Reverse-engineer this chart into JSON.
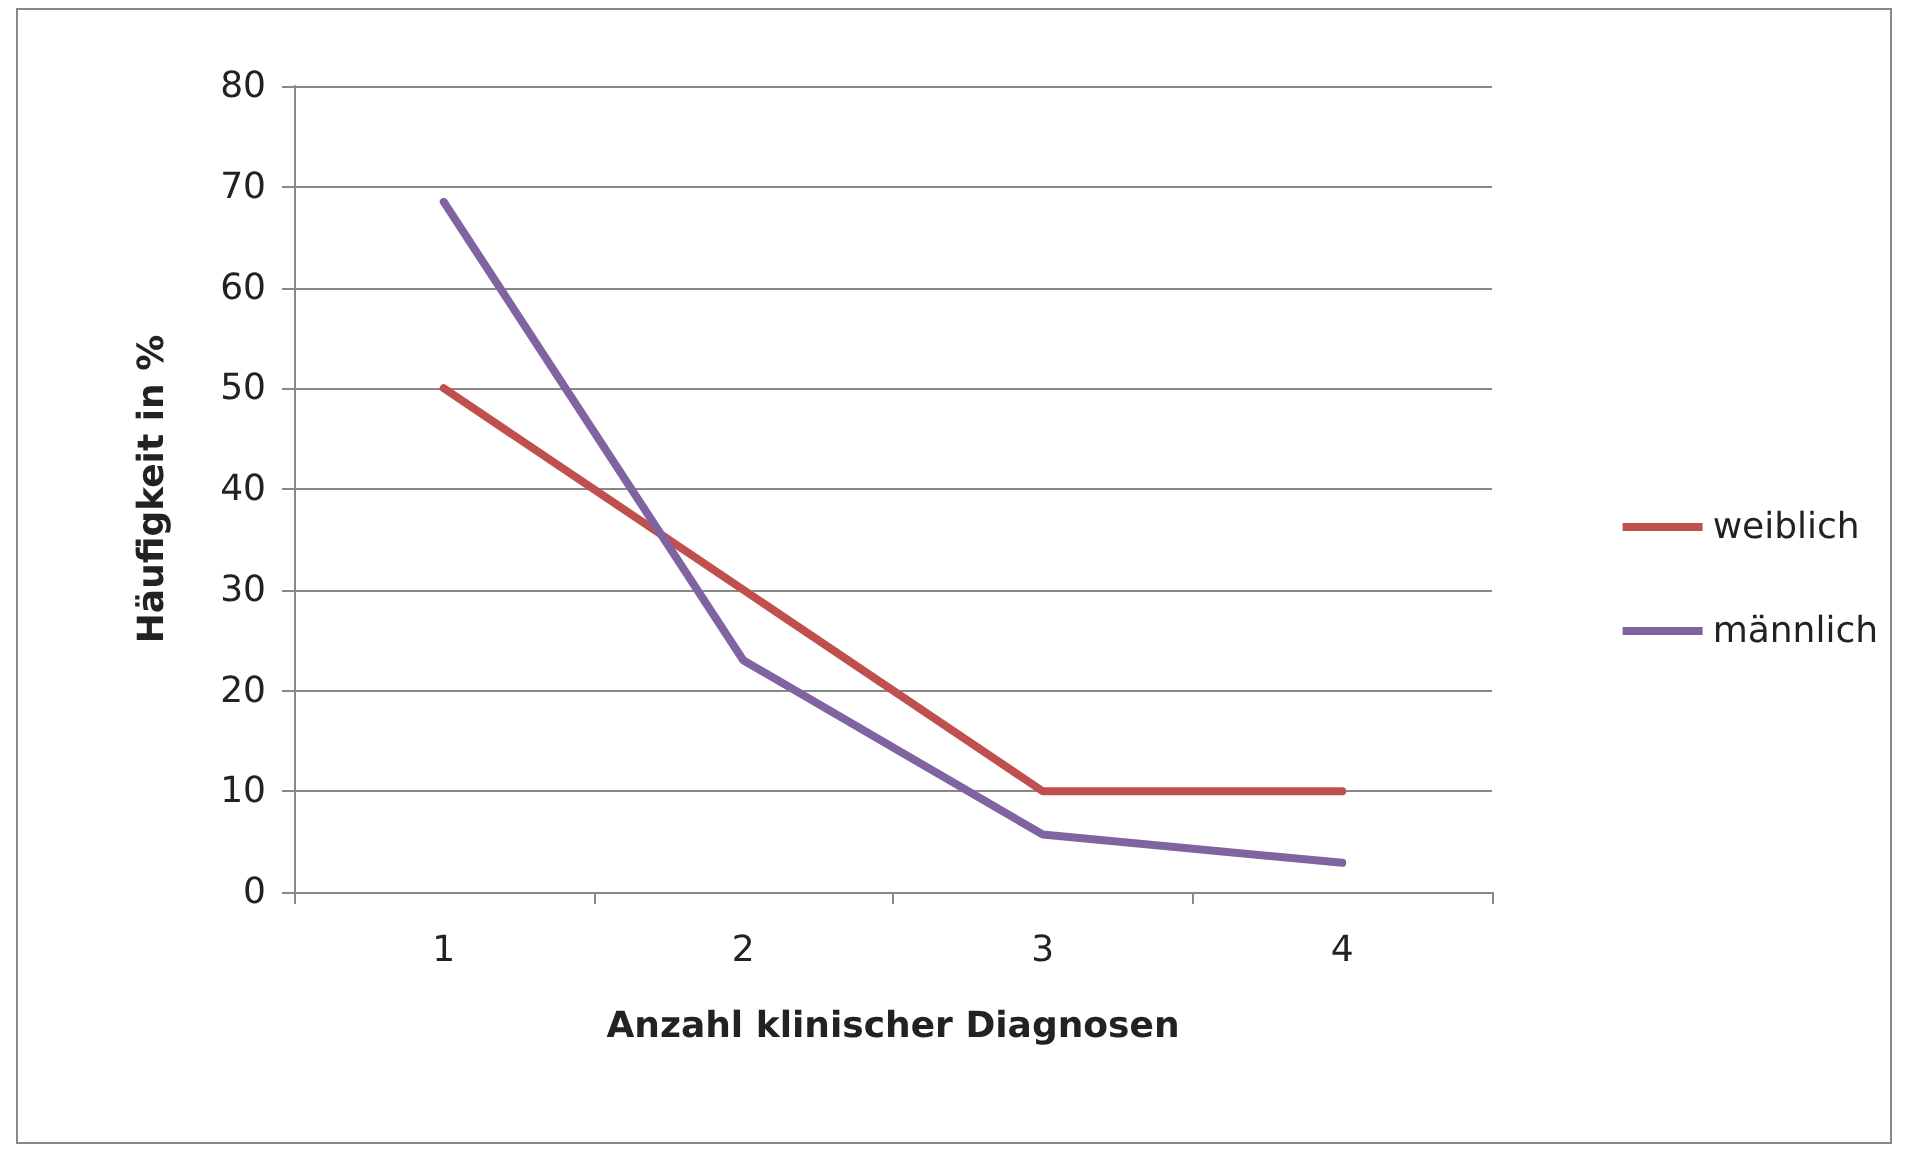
{
  "chart_data": {
    "type": "line",
    "xlabel": "Anzahl klinischer Diagnosen",
    "ylabel": "Häufigkeit in %",
    "categories": [
      "1",
      "2",
      "3",
      "4"
    ],
    "series": [
      {
        "name": "weiblich",
        "color": "#c0504d",
        "values": [
          50,
          30,
          10,
          10
        ]
      },
      {
        "name": "männlich",
        "color": "#8064a2",
        "values": [
          68.5,
          23,
          5.7,
          2.9
        ]
      }
    ],
    "ylim": [
      0,
      80
    ],
    "yticks": [
      0,
      10,
      20,
      30,
      40,
      50,
      60,
      70,
      80
    ],
    "grid": "y",
    "legend": "right",
    "marker": "none",
    "line_style": "solid"
  }
}
